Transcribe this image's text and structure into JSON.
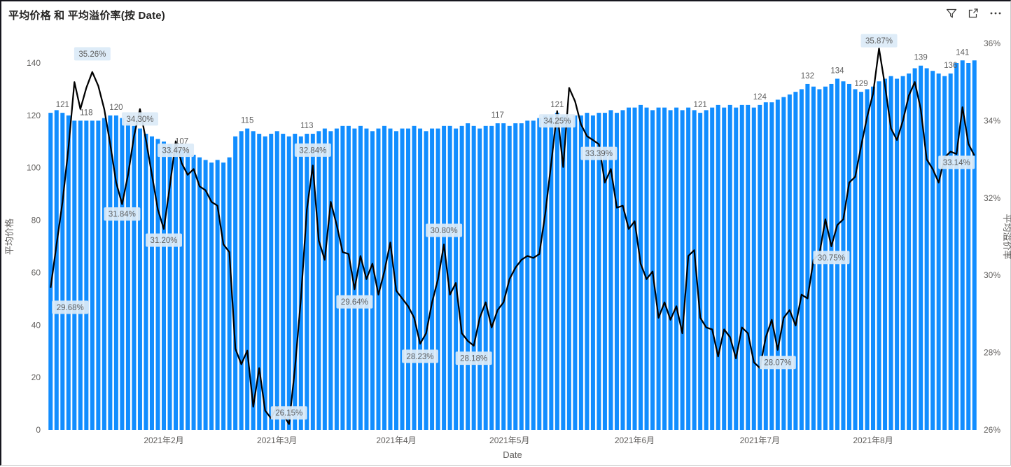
{
  "header": {
    "title": "平均价格 和 平均溢价率(按 Date)",
    "icons": [
      "filter-icon",
      "focus-mode-icon",
      "more-options-icon"
    ]
  },
  "chart_data": {
    "type": "combo-bar-line",
    "title": "平均价格 和 平均溢价率(按 Date)",
    "legend_position": "none",
    "grid": false,
    "x_axis": {
      "title": "Date",
      "tick_labels": [
        {
          "i": 19,
          "label": "2021年2月"
        },
        {
          "i": 38,
          "label": "2021年3月"
        },
        {
          "i": 58,
          "label": "2021年4月"
        },
        {
          "i": 77,
          "label": "2021年5月"
        },
        {
          "i": 98,
          "label": "2021年6月"
        },
        {
          "i": 119,
          "label": "2021年7月"
        },
        {
          "i": 138,
          "label": "2021年8月"
        }
      ]
    },
    "left_axis": {
      "title": "平均价格",
      "min": 0,
      "max": 140,
      "ticks": [
        0,
        20,
        40,
        60,
        80,
        100,
        120,
        140
      ]
    },
    "right_axis": {
      "title": "平均溢价率",
      "min": 26,
      "max": 36,
      "ticks": [
        "26%",
        "28%",
        "30%",
        "32%",
        "34%",
        "36%"
      ]
    },
    "series": [
      {
        "name": "平均价格",
        "type": "bar",
        "axis": "left",
        "color": "#118DFF",
        "values": [
          121,
          122,
          121,
          120,
          118,
          118,
          118,
          118,
          118,
          119,
          120,
          120,
          119,
          117,
          116,
          115,
          113,
          112,
          111,
          110,
          109,
          108,
          107,
          106,
          105,
          104,
          103,
          102,
          103,
          102,
          104,
          112,
          114,
          115,
          114,
          113,
          112,
          113,
          114,
          113,
          112,
          113,
          112,
          113,
          113,
          114,
          115,
          114,
          115,
          116,
          116,
          115,
          116,
          115,
          114,
          115,
          116,
          115,
          114,
          115,
          115,
          116,
          115,
          114,
          115,
          115,
          116,
          116,
          115,
          116,
          117,
          116,
          115,
          116,
          116,
          117,
          117,
          116,
          117,
          117,
          118,
          118,
          119,
          120,
          120,
          121,
          120,
          119,
          120,
          120,
          121,
          120,
          121,
          121,
          122,
          121,
          122,
          123,
          123,
          124,
          123,
          122,
          123,
          123,
          122,
          123,
          122,
          123,
          122,
          121,
          122,
          123,
          124,
          123,
          124,
          123,
          124,
          124,
          123,
          124,
          125,
          125,
          126,
          127,
          128,
          129,
          130,
          132,
          131,
          130,
          131,
          132,
          134,
          133,
          132,
          130,
          129,
          130,
          131,
          133,
          134,
          135,
          134,
          135,
          136,
          138,
          139,
          138,
          137,
          136,
          135,
          136,
          140,
          141,
          140,
          141
        ]
      },
      {
        "name": "平均溢价率",
        "type": "line",
        "axis": "right",
        "color": "#000000",
        "values": [
          29.68,
          30.8,
          31.9,
          33.3,
          35.0,
          34.3,
          34.85,
          35.26,
          34.9,
          34.3,
          33.4,
          32.4,
          31.84,
          32.6,
          33.6,
          34.3,
          33.5,
          32.6,
          31.7,
          31.2,
          32.3,
          33.47,
          32.9,
          32.6,
          32.75,
          32.3,
          32.2,
          31.9,
          31.8,
          30.8,
          30.6,
          28.1,
          27.7,
          28.05,
          26.6,
          27.6,
          26.5,
          26.3,
          26.6,
          26.4,
          26.15,
          27.6,
          29.4,
          31.7,
          32.84,
          30.9,
          30.4,
          31.9,
          31.3,
          30.6,
          30.55,
          29.64,
          30.5,
          29.9,
          30.3,
          29.5,
          30.1,
          30.85,
          29.6,
          29.4,
          29.2,
          28.9,
          28.23,
          28.5,
          29.3,
          29.9,
          30.8,
          29.5,
          29.8,
          28.5,
          28.3,
          28.18,
          28.9,
          29.3,
          28.65,
          29.1,
          29.3,
          29.9,
          30.2,
          30.4,
          30.5,
          30.45,
          30.55,
          31.6,
          32.9,
          34.25,
          32.8,
          34.85,
          34.5,
          33.9,
          33.6,
          33.5,
          33.39,
          32.4,
          32.75,
          31.75,
          31.8,
          31.2,
          31.4,
          30.3,
          29.9,
          30.1,
          28.9,
          29.3,
          28.85,
          29.2,
          28.5,
          30.5,
          30.65,
          28.9,
          28.65,
          28.6,
          27.9,
          28.6,
          28.4,
          27.85,
          28.65,
          28.5,
          27.75,
          27.6,
          28.4,
          28.85,
          28.07,
          28.9,
          29.1,
          28.7,
          29.5,
          29.4,
          30.4,
          30.55,
          31.45,
          30.75,
          31.3,
          31.45,
          32.4,
          32.55,
          33.35,
          34.1,
          34.7,
          35.87,
          34.9,
          33.8,
          33.5,
          34.0,
          34.65,
          35.0,
          34.3,
          33.0,
          32.75,
          32.4,
          33.05,
          33.2,
          33.14,
          34.35,
          33.4,
          33.1
        ]
      }
    ],
    "bar_labels": [
      {
        "i": 2,
        "v": "121"
      },
      {
        "i": 6,
        "v": "118"
      },
      {
        "i": 11,
        "v": "120"
      },
      {
        "i": 22,
        "v": "107"
      },
      {
        "i": 33,
        "v": "115"
      },
      {
        "i": 43,
        "v": "113"
      },
      {
        "i": 75,
        "v": "117"
      },
      {
        "i": 85,
        "v": "121"
      },
      {
        "i": 109,
        "v": "121"
      },
      {
        "i": 119,
        "v": "124"
      },
      {
        "i": 127,
        "v": "132"
      },
      {
        "i": 132,
        "v": "134"
      },
      {
        "i": 136,
        "v": "129"
      },
      {
        "i": 146,
        "v": "139"
      },
      {
        "i": 151,
        "v": "136"
      },
      {
        "i": 153,
        "v": "141"
      }
    ],
    "line_labels": [
      {
        "i": 0,
        "v": "29.68%",
        "dx": 28,
        "dy": 28
      },
      {
        "i": 7,
        "v": "35.26%",
        "dy": -26
      },
      {
        "i": 12,
        "v": "31.84%",
        "dy": 14
      },
      {
        "i": 15,
        "v": "34.30%",
        "dy": 14
      },
      {
        "i": 19,
        "v": "31.20%",
        "dy": 16
      },
      {
        "i": 21,
        "v": "33.47%",
        "dy": 13
      },
      {
        "i": 40,
        "v": "26.15%",
        "dy": -16
      },
      {
        "i": 44,
        "v": "32.84%",
        "dy": -22
      },
      {
        "i": 51,
        "v": "29.64%",
        "dy": 18
      },
      {
        "i": 62,
        "v": "28.23%",
        "dy": 18
      },
      {
        "i": 66,
        "v": "30.80%",
        "dy": -20
      },
      {
        "i": 71,
        "v": "28.18%",
        "dy": 18
      },
      {
        "i": 85,
        "v": "34.25%",
        "dy": 14
      },
      {
        "i": 92,
        "v": "33.39%",
        "dy": 13
      },
      {
        "i": 122,
        "v": "28.07%",
        "dy": 18
      },
      {
        "i": 131,
        "v": "30.75%",
        "dy": 16
      },
      {
        "i": 139,
        "v": "35.87%",
        "dy": -11
      },
      {
        "i": 152,
        "v": "33.14%",
        "dy": 12
      }
    ],
    "colors": {
      "bar": "#118DFF",
      "line": "#000000",
      "label_bg": "#dcebf8",
      "label_text": "#5f5f5f",
      "axis_text": "#605e5c"
    }
  }
}
